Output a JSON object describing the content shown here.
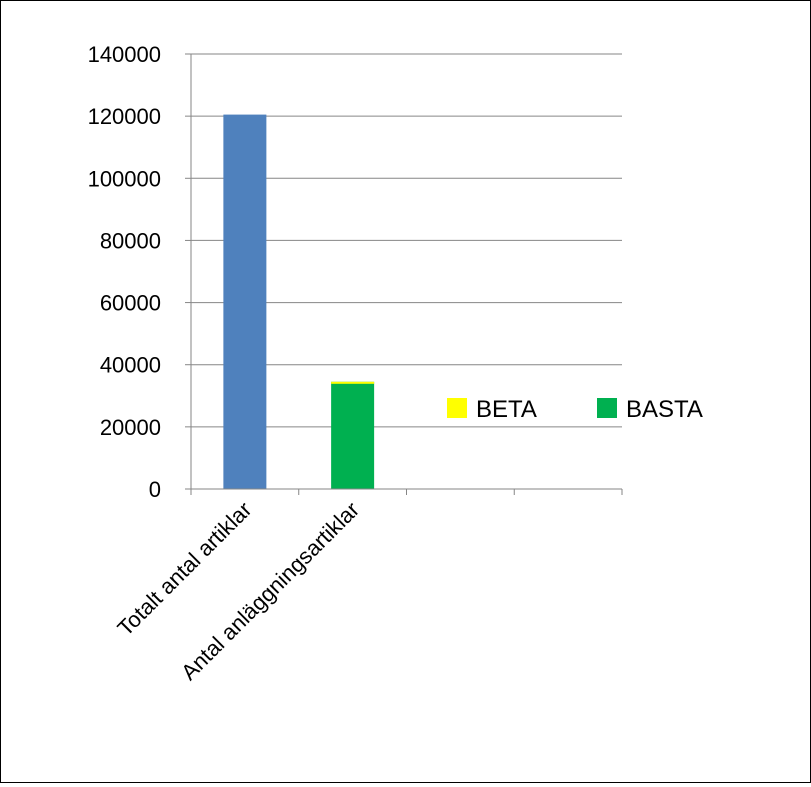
{
  "chart_data": {
    "type": "bar",
    "title": "",
    "xlabel": "",
    "ylabel": "",
    "categories": [
      "Totalt antal artiklar",
      "Antal anläggningsartiklar",
      "",
      ""
    ],
    "bars": [
      {
        "category_index": 0,
        "value": 120500,
        "color": "#4f81bd"
      },
      {
        "category_index": 1,
        "value": 34500,
        "color": "#00b050",
        "top_band_color": "#ffff00",
        "top_band_value": 600
      }
    ],
    "ylim": [
      0,
      140000
    ],
    "yticks": [
      0,
      20000,
      40000,
      60000,
      80000,
      100000,
      120000,
      140000
    ],
    "ytick_labels": [
      "0",
      "20000",
      "40000",
      "60000",
      "80000",
      "100000",
      "120000",
      "140000"
    ],
    "grid": true,
    "legend": {
      "placement": "right",
      "entries": [
        {
          "name": "BETA",
          "color": "#ffff00"
        },
        {
          "name": "BASTA",
          "color": "#00b050"
        }
      ]
    }
  }
}
